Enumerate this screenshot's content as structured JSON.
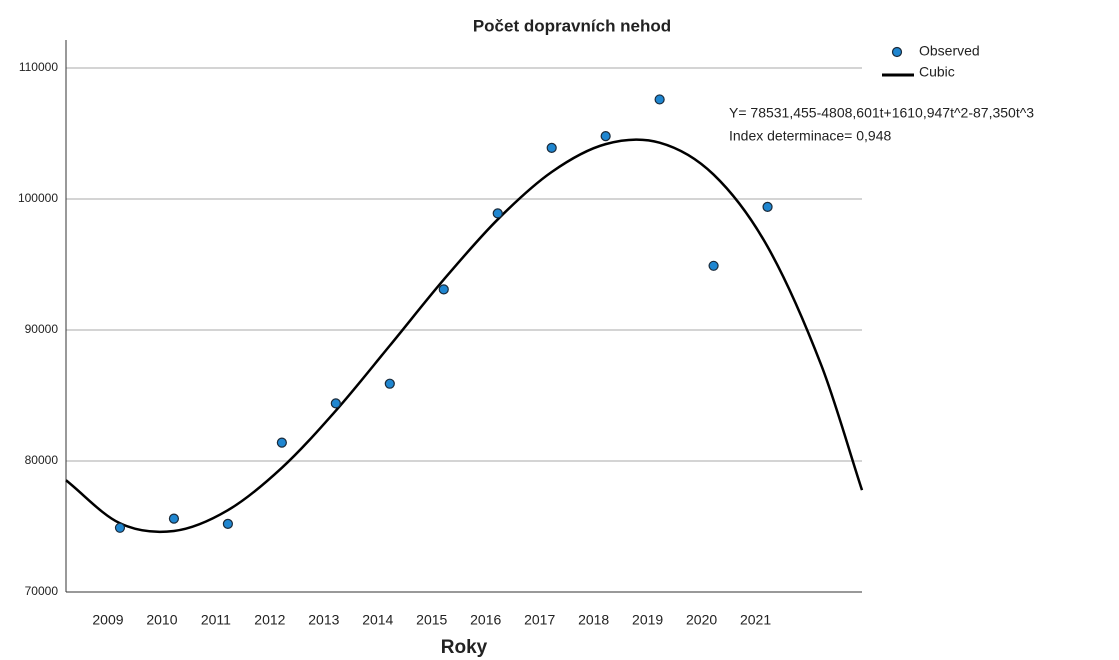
{
  "chart_data": {
    "type": "scatter",
    "title": "Počet dopravních nehod",
    "x_label": "Roky",
    "annotations": [
      "Y= 78531,455-4808,601t+1610,947t^2-87,350t^3",
      "Index determinace= 0,948"
    ],
    "xlim": [
      2008,
      2022.75
    ],
    "xticks": [
      2009,
      2010,
      2011,
      2012,
      2013,
      2014,
      2015,
      2016,
      2017,
      2018,
      2019,
      2020,
      2021
    ],
    "ylim": [
      70000,
      110000
    ],
    "yticks": [
      70000,
      80000,
      90000,
      100000,
      110000
    ],
    "grid": true,
    "legend": "upper right",
    "series": [
      {
        "name": "Observed",
        "color": "#1f86d0",
        "kind": "points",
        "x": [
          2009,
          2010,
          2011,
          2012,
          2013,
          2014,
          2015,
          2016,
          2017,
          2018,
          2019,
          2020,
          2021
        ],
        "values": [
          74900,
          75600,
          75200,
          81400,
          84400,
          85900,
          93100,
          98900,
          103900,
          104800,
          107600,
          94900,
          99400
        ]
      },
      {
        "name": "Cubic",
        "color": "#000000",
        "kind": "line",
        "x": [
          2008,
          2009,
          2010,
          2011,
          2012,
          2013,
          2014,
          2015,
          2016,
          2017,
          2018,
          2019,
          2020,
          2021,
          2022,
          2022.75
        ],
        "values": [
          78531,
          75246,
          74659,
          76246,
          79482,
          83843,
          88806,
          93847,
          98440,
          102063,
          104190,
          104299,
          101864,
          96362,
          87268,
          77774
        ]
      }
    ]
  }
}
